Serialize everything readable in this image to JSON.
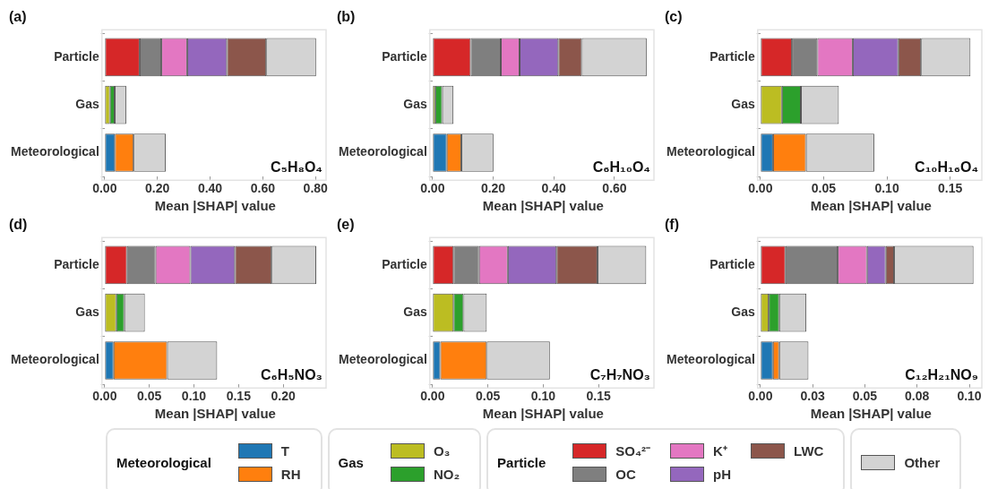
{
  "chart_data": [
    {
      "type": "bar",
      "orientation": "horizontal",
      "stacked": true,
      "title": "(a)",
      "xlabel": "Mean |SHAP| value",
      "annotations": [
        "C₅H₈O₄"
      ],
      "legend": "bottom",
      "categories": [
        "Particle",
        "Gas",
        "Meteorological"
      ],
      "xlim": [
        0,
        0.84
      ],
      "xticks": [
        {
          "value": 0,
          "label": "0.00"
        },
        {
          "value": 0.2,
          "label": "0.20"
        },
        {
          "value": 0.4,
          "label": "0.40"
        },
        {
          "value": 0.6,
          "label": "0.60"
        },
        {
          "value": 0.8,
          "label": "0.80"
        }
      ],
      "series": [
        {
          "name": "T",
          "color": "#1f77b4",
          "values": [
            null,
            null,
            0.039
          ]
        },
        {
          "name": "RH",
          "color": "#ff7f0e",
          "values": [
            null,
            null,
            0.071
          ]
        },
        {
          "name": "O₃",
          "color": "#bcbd22",
          "values": [
            null,
            0.02,
            null
          ]
        },
        {
          "name": "NO₂",
          "color": "#2ca02c",
          "values": [
            null,
            0.018,
            null
          ]
        },
        {
          "name": "SO₄²⁻",
          "color": "#d62728",
          "values": [
            0.133,
            null,
            null
          ]
        },
        {
          "name": "OC",
          "color": "#7f7f7f",
          "values": [
            0.082,
            null,
            null
          ]
        },
        {
          "name": "K⁺",
          "color": "#e377c2",
          "values": [
            0.098,
            null,
            null
          ]
        },
        {
          "name": "pH",
          "color": "#9467bd",
          "values": [
            0.151,
            null,
            null
          ]
        },
        {
          "name": "LWC",
          "color": "#8c564b",
          "values": [
            0.149,
            null,
            null
          ]
        },
        {
          "name": "Other",
          "color": "#d3d3d3",
          "values": [
            0.189,
            0.044,
            0.122
          ]
        }
      ]
    },
    {
      "type": "bar",
      "orientation": "horizontal",
      "stacked": true,
      "title": "(b)",
      "xlabel": "Mean |SHAP| value",
      "annotations": [
        "C₆H₁₀O₄"
      ],
      "categories": [
        "Particle",
        "Gas",
        "Meteorological"
      ],
      "xlim": [
        0,
        0.73
      ],
      "xticks": [
        {
          "value": 0,
          "label": "0.00"
        },
        {
          "value": 0.2,
          "label": "0.20"
        },
        {
          "value": 0.4,
          "label": "0.40"
        },
        {
          "value": 0.6,
          "label": "0.60"
        }
      ],
      "series": [
        {
          "color": "#1f77b4",
          "values": [
            null,
            null,
            0.047
          ]
        },
        {
          "color": "#ff7f0e",
          "values": [
            null,
            null,
            0.048
          ]
        },
        {
          "color": "#bcbd22",
          "values": [
            null,
            0.009,
            null
          ]
        },
        {
          "color": "#2ca02c",
          "values": [
            null,
            0.023,
            null
          ]
        },
        {
          "color": "#d62728",
          "values": [
            0.126,
            null,
            null
          ]
        },
        {
          "color": "#7f7f7f",
          "values": [
            0.099,
            null,
            null
          ]
        },
        {
          "color": "#e377c2",
          "values": [
            0.062,
            null,
            null
          ]
        },
        {
          "color": "#9467bd",
          "values": [
            0.128,
            null,
            null
          ]
        },
        {
          "color": "#8c564b",
          "values": [
            0.077,
            null,
            null
          ]
        },
        {
          "color": "#d3d3d3",
          "values": [
            0.214,
            0.037,
            0.106
          ]
        }
      ]
    },
    {
      "type": "bar",
      "orientation": "horizontal",
      "stacked": true,
      "title": "(c)",
      "xlabel": "Mean |SHAP| value",
      "annotations": [
        "C₁₀H₁₆O₄"
      ],
      "categories": [
        "Particle",
        "Gas",
        "Meteorological"
      ],
      "xlim": [
        0,
        0.175
      ],
      "xticks": [
        {
          "value": 0,
          "label": "0.00"
        },
        {
          "value": 0.05,
          "label": "0.05"
        },
        {
          "value": 0.1,
          "label": "0.10"
        },
        {
          "value": 0.15,
          "label": "0.15"
        }
      ],
      "series": [
        {
          "color": "#1f77b4",
          "values": [
            null,
            null,
            0.01
          ]
        },
        {
          "color": "#ff7f0e",
          "values": [
            null,
            null,
            0.026
          ]
        },
        {
          "color": "#bcbd22",
          "values": [
            null,
            0.017,
            null
          ]
        },
        {
          "color": "#2ca02c",
          "values": [
            null,
            0.015,
            null
          ]
        },
        {
          "color": "#d62728",
          "values": [
            0.025,
            null,
            null
          ]
        },
        {
          "color": "#7f7f7f",
          "values": [
            0.02,
            null,
            null
          ]
        },
        {
          "color": "#e377c2",
          "values": [
            0.028,
            null,
            null
          ]
        },
        {
          "color": "#9467bd",
          "values": [
            0.036,
            null,
            null
          ]
        },
        {
          "color": "#8c564b",
          "values": [
            0.018,
            null,
            null
          ]
        },
        {
          "color": "#d3d3d3",
          "values": [
            0.039,
            0.03,
            0.054
          ]
        }
      ]
    },
    {
      "type": "bar",
      "orientation": "horizontal",
      "stacked": true,
      "title": "(d)",
      "xlabel": "Mean |SHAP| value",
      "annotations": [
        "C₆H₅NO₃"
      ],
      "categories": [
        "Particle",
        "Gas",
        "Meteorological"
      ],
      "xlim": [
        0,
        0.248
      ],
      "xticks": [
        {
          "value": 0,
          "label": "0.00"
        },
        {
          "value": 0.05,
          "label": "0.05"
        },
        {
          "value": 0.1,
          "label": "0.10"
        },
        {
          "value": 0.15,
          "label": "0.15"
        },
        {
          "value": 0.2,
          "label": "0.20"
        }
      ],
      "series": [
        {
          "color": "#1f77b4",
          "values": [
            null,
            null,
            0.01
          ]
        },
        {
          "color": "#ff7f0e",
          "values": [
            null,
            null,
            0.06
          ]
        },
        {
          "color": "#bcbd22",
          "values": [
            null,
            0.013,
            null
          ]
        },
        {
          "color": "#2ca02c",
          "values": [
            null,
            0.009,
            null
          ]
        },
        {
          "color": "#d62728",
          "values": [
            0.025,
            null,
            null
          ]
        },
        {
          "color": "#7f7f7f",
          "values": [
            0.032,
            null,
            null
          ]
        },
        {
          "color": "#e377c2",
          "values": [
            0.039,
            null,
            null
          ]
        },
        {
          "color": "#9467bd",
          "values": [
            0.05,
            null,
            null
          ]
        },
        {
          "color": "#8c564b",
          "values": [
            0.041,
            null,
            null
          ]
        },
        {
          "color": "#d3d3d3",
          "values": [
            0.05,
            0.023,
            0.056
          ]
        }
      ]
    },
    {
      "type": "bar",
      "orientation": "horizontal",
      "stacked": true,
      "title": "(e)",
      "xlabel": "Mean |SHAP| value",
      "annotations": [
        "C₇H₇NO₃"
      ],
      "categories": [
        "Particle",
        "Gas",
        "Meteorological"
      ],
      "xlim": [
        0,
        0.2
      ],
      "xticks": [
        {
          "value": 0,
          "label": "0.00"
        },
        {
          "value": 0.05,
          "label": "0.05"
        },
        {
          "value": 0.1,
          "label": "0.10"
        },
        {
          "value": 0.15,
          "label": "0.15"
        }
      ],
      "series": [
        {
          "color": "#1f77b4",
          "values": [
            null,
            null,
            0.007
          ]
        },
        {
          "color": "#ff7f0e",
          "values": [
            null,
            null,
            0.042
          ]
        },
        {
          "color": "#bcbd22",
          "values": [
            null,
            0.019,
            null
          ]
        },
        {
          "color": "#2ca02c",
          "values": [
            null,
            0.009,
            null
          ]
        },
        {
          "color": "#d62728",
          "values": [
            0.019,
            null,
            null
          ]
        },
        {
          "color": "#7f7f7f",
          "values": [
            0.023,
            null,
            null
          ]
        },
        {
          "color": "#e377c2",
          "values": [
            0.026,
            null,
            null
          ]
        },
        {
          "color": "#9467bd",
          "values": [
            0.044,
            null,
            null
          ]
        },
        {
          "color": "#8c564b",
          "values": [
            0.037,
            null,
            null
          ]
        },
        {
          "color": "#d3d3d3",
          "values": [
            0.044,
            0.021,
            0.057
          ]
        }
      ]
    },
    {
      "type": "bar",
      "orientation": "horizontal",
      "stacked": true,
      "title": "(f)",
      "xlabel": "Mean |SHAP| value",
      "annotations": [
        "C₁₂H₂₁NO₉"
      ],
      "categories": [
        "Particle",
        "Gas",
        "Meteorological"
      ],
      "xlim": [
        0,
        0.106
      ],
      "xticks": [
        {
          "value": 0,
          "label": "0.00"
        },
        {
          "value": 0.025,
          "label": "0.03"
        },
        {
          "value": 0.05,
          "label": "0.05"
        },
        {
          "value": 0.075,
          "label": "0.08"
        },
        {
          "value": 0.1,
          "label": "0.10"
        }
      ],
      "series": [
        {
          "color": "#1f77b4",
          "values": [
            null,
            null,
            0.006
          ]
        },
        {
          "color": "#ff7f0e",
          "values": [
            null,
            null,
            0.003
          ]
        },
        {
          "color": "#bcbd22",
          "values": [
            null,
            0.004,
            null
          ]
        },
        {
          "color": "#2ca02c",
          "values": [
            null,
            0.005,
            null
          ]
        },
        {
          "color": "#d62728",
          "values": [
            0.012,
            null,
            null
          ]
        },
        {
          "color": "#7f7f7f",
          "values": [
            0.025,
            null,
            null
          ]
        },
        {
          "color": "#e377c2",
          "values": [
            0.014,
            null,
            null
          ]
        },
        {
          "color": "#9467bd",
          "values": [
            0.009,
            null,
            null
          ]
        },
        {
          "color": "#8c564b",
          "values": [
            0.004,
            null,
            null
          ]
        },
        {
          "color": "#d3d3d3",
          "values": [
            0.038,
            0.013,
            0.014
          ]
        }
      ]
    }
  ]
}
